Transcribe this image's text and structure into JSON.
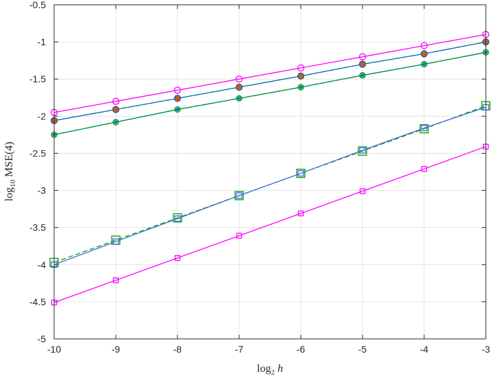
{
  "chart_data": {
    "type": "line",
    "title": "",
    "xlabel": {
      "base": "log",
      "sub": "2",
      "var": "h"
    },
    "ylabel": {
      "base": "log",
      "sub": "10",
      "rest": " MSE(4)"
    },
    "xlim": [
      -10,
      -3
    ],
    "ylim": [
      -5,
      -0.5
    ],
    "xticks": [
      -10,
      -9,
      -8,
      -7,
      -6,
      -5,
      -4,
      -3
    ],
    "yticks": [
      -5,
      -4.5,
      -4,
      -3.5,
      -3,
      -2.5,
      -2,
      -1.5,
      -1,
      -0.5
    ],
    "xtick_labels": [
      "-10",
      "-9",
      "-8",
      "-7",
      "-6",
      "-5",
      "-4",
      "-3"
    ],
    "ytick_labels": [
      "-5",
      "-4.5",
      "-4",
      "-3.5",
      "-3",
      "-2.5",
      "-2",
      "-1.5",
      "-1",
      "-0.5"
    ],
    "grid": true,
    "x": [
      -10,
      -9,
      -8,
      -7,
      -6,
      -5,
      -4,
      -3
    ],
    "series": [
      {
        "color": "#ff00ff",
        "line": "solid",
        "marker": "circle",
        "marker_size": 9,
        "fill": "none",
        "values": [
          -1.95,
          -1.8,
          -1.65,
          -1.5,
          -1.35,
          -1.2,
          -1.05,
          -0.9
        ]
      },
      {
        "color": "#d95319",
        "line": "dashed",
        "marker": "circle",
        "marker_size": 9,
        "fill": "#ff7f0e",
        "values": [
          -2.06,
          -1.91,
          -1.76,
          -1.61,
          -1.46,
          -1.3,
          -1.16,
          -1.0
        ]
      },
      {
        "color": "#0072bd",
        "line": "solid",
        "marker": "circle",
        "marker_size": 9,
        "fill": "#d95319",
        "values": [
          -2.06,
          -1.91,
          -1.76,
          -1.61,
          -1.46,
          -1.3,
          -1.16,
          -1.0
        ]
      },
      {
        "color": "#0072bd",
        "line": "solid",
        "marker": "asterisk",
        "marker_size": 8,
        "fill": "none",
        "values": [
          -2.25,
          -2.08,
          -1.91,
          -1.76,
          -1.61,
          -1.45,
          -1.3,
          -1.14
        ]
      },
      {
        "color": "#00a000",
        "line": "dashed",
        "marker": "circle",
        "marker_size": 8,
        "fill": "none",
        "values": [
          -2.25,
          -2.08,
          -1.91,
          -1.76,
          -1.61,
          -1.45,
          -1.3,
          -1.14
        ]
      },
      {
        "color": "#00a000",
        "line": "dashed",
        "marker": "square",
        "marker_size": 12,
        "fill": "none",
        "values": [
          -3.97,
          -3.67,
          -3.37,
          -3.07,
          -2.77,
          -2.47,
          -2.17,
          -1.86
        ]
      },
      {
        "color": "#4169e1",
        "line": "solid",
        "marker": "square",
        "marker_size": 8,
        "fill": "none",
        "values": [
          -4.0,
          -3.69,
          -3.38,
          -3.07,
          -2.77,
          -2.46,
          -2.16,
          -1.88
        ]
      },
      {
        "color": "#ff00ff",
        "line": "solid",
        "marker": "square",
        "marker_size": 7,
        "fill": "none",
        "values": [
          -4.51,
          -4.21,
          -3.91,
          -3.61,
          -3.31,
          -3.01,
          -2.71,
          -2.41
        ]
      }
    ]
  }
}
